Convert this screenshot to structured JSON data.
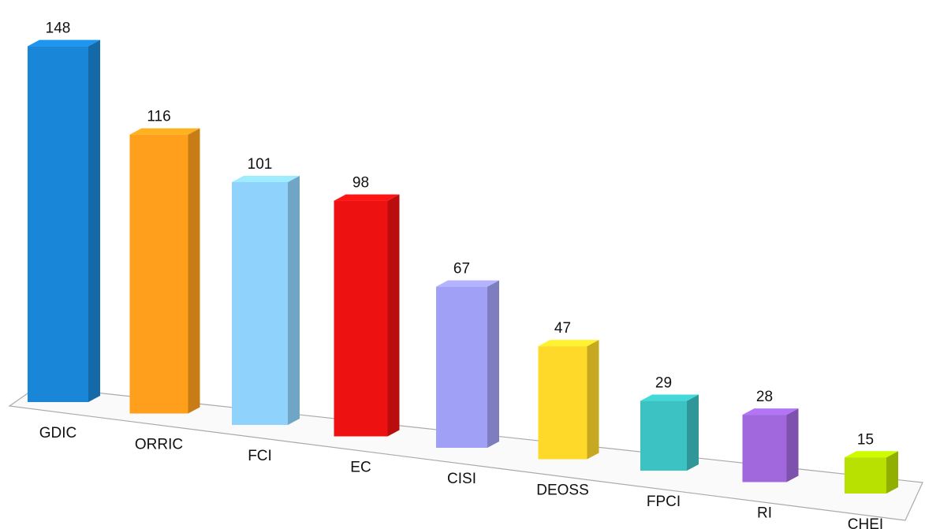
{
  "chart_data": {
    "type": "bar3d",
    "categories": [
      "GDIC",
      "ORRIC",
      "FCI",
      "EC",
      "CISI",
      "DEOSS",
      "FPCI",
      "RI",
      "CHEI"
    ],
    "values": [
      148,
      116,
      101,
      98,
      67,
      47,
      29,
      28,
      15
    ],
    "colors": [
      "#1a86d8",
      "#ff9f1c",
      "#8fd3fc",
      "#ee1111",
      "#a0a0f6",
      "#ffd92a",
      "#3cc2c2",
      "#a068dc",
      "#b8e000"
    ]
  }
}
